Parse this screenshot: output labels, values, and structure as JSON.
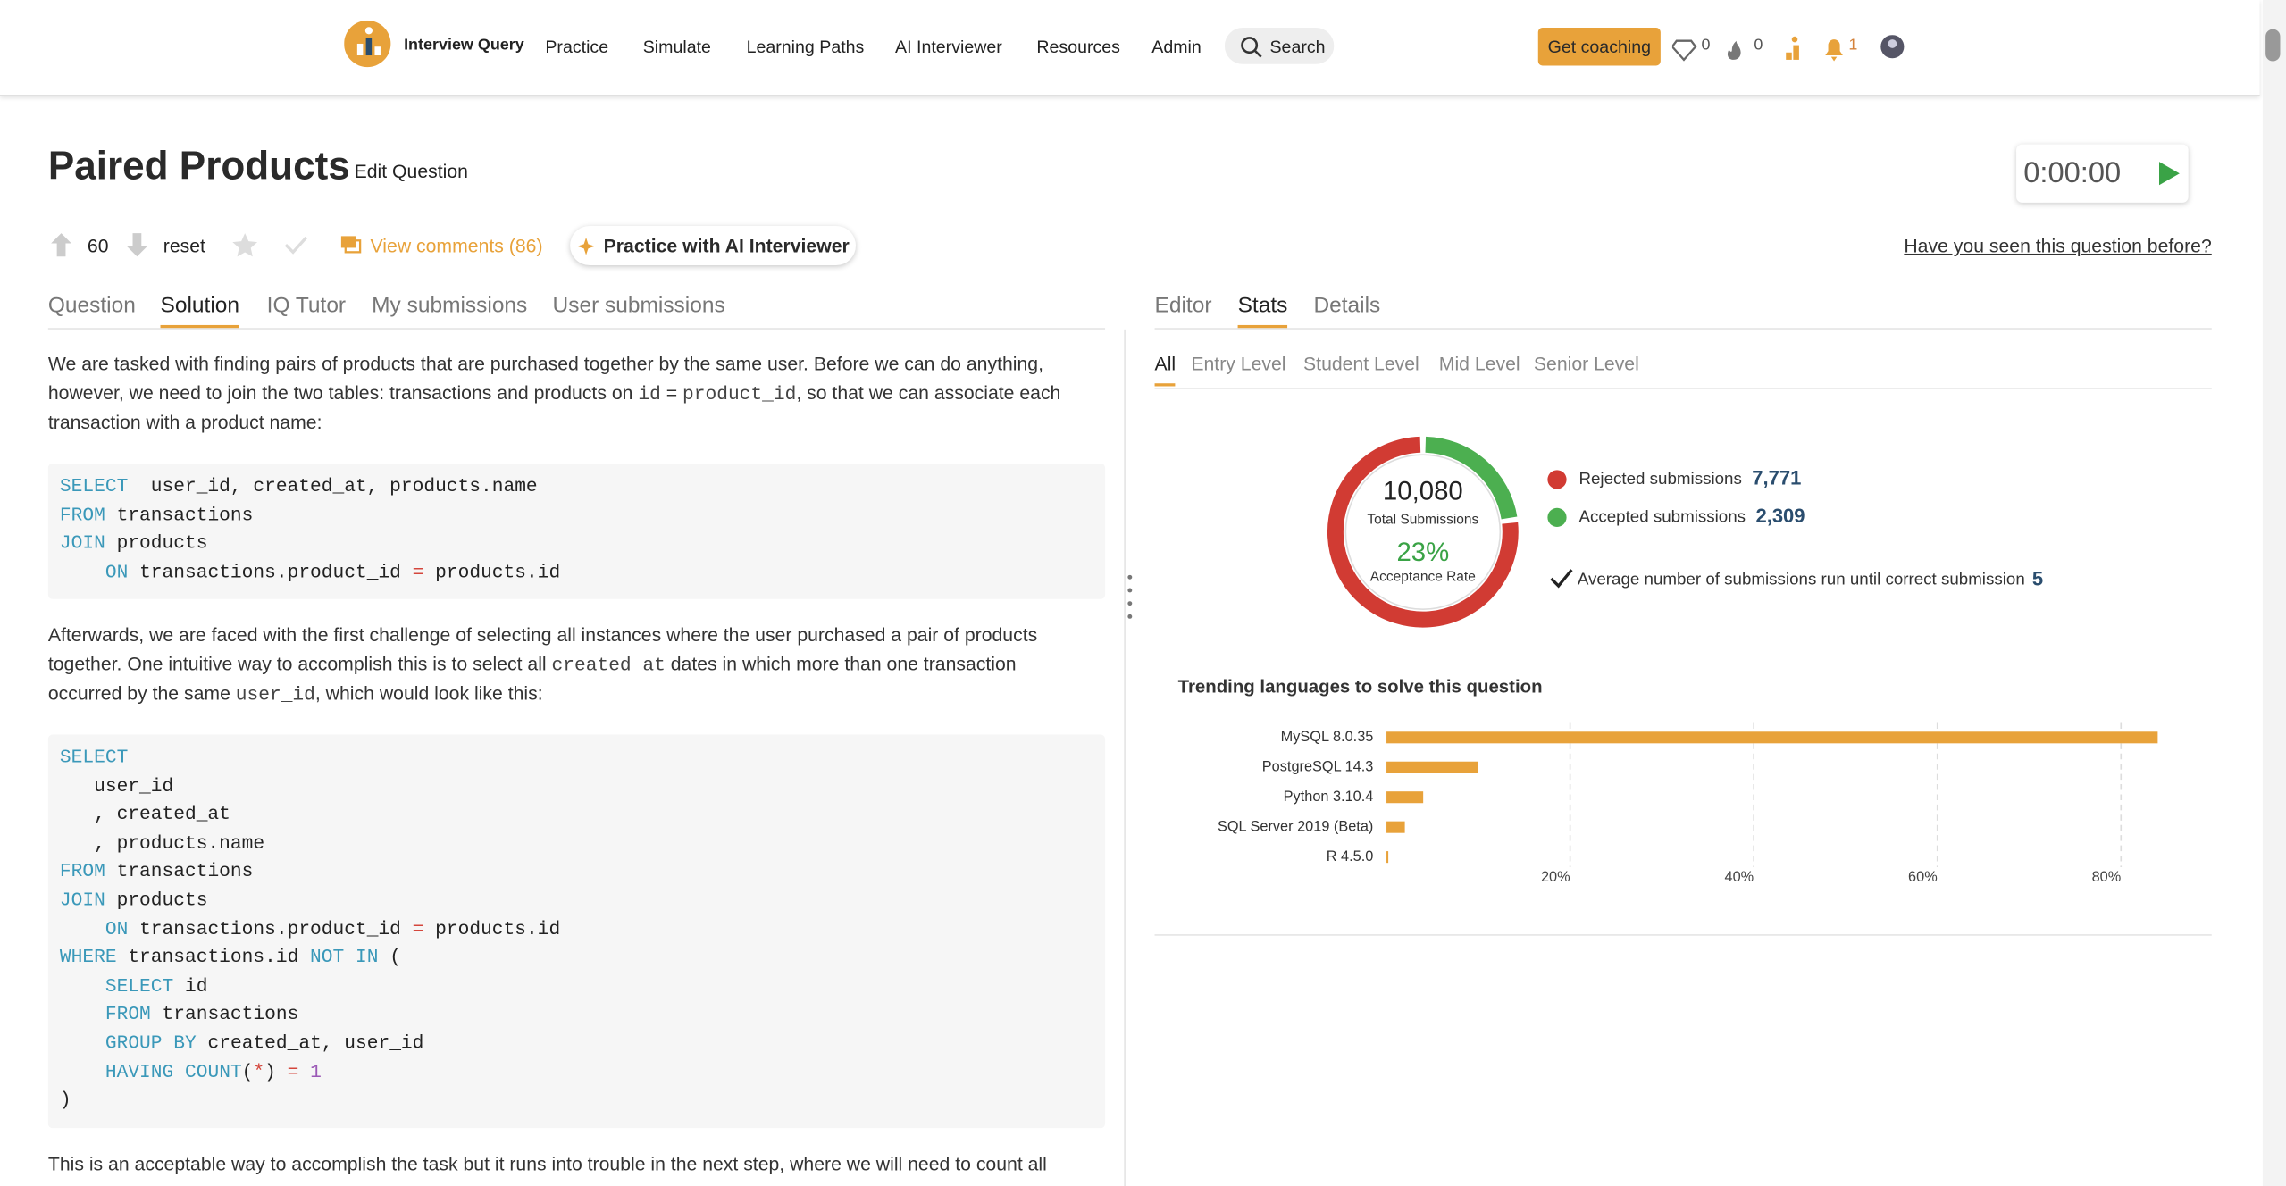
{
  "nav": {
    "brand": "Interview Query",
    "links": [
      "Practice",
      "Simulate",
      "Learning Paths",
      "AI Interviewer",
      "Resources",
      "Admin"
    ],
    "search": "Search",
    "coaching": "Get coaching",
    "gems": "0",
    "streak": "0",
    "notifications": "1"
  },
  "question": {
    "title": "Paired Products",
    "edit": "Edit Question",
    "votes": "60",
    "reset": "reset",
    "comments": "View comments (86)",
    "practice": "Practice with AI Interviewer",
    "timer": "0:00:00",
    "seen": "Have you seen this question before?"
  },
  "left_tabs": [
    "Question",
    "Solution",
    "IQ Tutor",
    "My submissions",
    "User submissions"
  ],
  "solution": {
    "paragraphs": [
      [
        "We are tasked with finding pairs of products that are purchased together by the same user. Before we can do anything, however, we need to join the two tables: transactions and products on ",
        "id",
        " = ",
        "product_id",
        ", so that we can associate each transaction with a product name:"
      ],
      [
        "Afterwards, we are faced with the first challenge of selecting all instances where the user purchased a pair of products together. One intuitive way to accomplish this is to select all ",
        "created_at",
        " dates in which more than one transaction occurred by the same ",
        "user_id",
        ", which would look like this:"
      ],
      [
        "This is an acceptable way to accomplish the task but it runs into trouble in the next step, where we will need to count all"
      ]
    ],
    "code_blocks": [
      [
        "SELECT  user_id, created_at, products.name",
        "FROM transactions",
        "JOIN products",
        "    ON transactions.product_id = products.id"
      ],
      [
        "SELECT",
        "   user_id",
        "   , created_at",
        "   , products.name",
        "FROM transactions",
        "JOIN products",
        "    ON transactions.product_id = products.id",
        "WHERE transactions.id NOT IN (",
        "    SELECT id",
        "    FROM transactions",
        "    GROUP BY created_at, user_id",
        "    HAVING COUNT(*) = 1",
        ")"
      ]
    ]
  },
  "right_tabs": [
    "Editor",
    "Stats",
    "Details"
  ],
  "level_tabs": [
    "All",
    "Entry Level",
    "Student Level",
    "Mid Level",
    "Senior Level"
  ],
  "chart_data": [
    {
      "type": "donut",
      "categories": [
        "Rejected submissions",
        "Accepted submissions"
      ],
      "values": [
        7771,
        2309
      ],
      "value_labels": [
        "7,771",
        "2,309"
      ],
      "colors": [
        "#d13b33",
        "#4caf50"
      ],
      "total": "10,080",
      "total_label": "Total Submissions",
      "rate": "23%",
      "rate_label": "Acceptance Rate"
    },
    {
      "type": "bar",
      "title": "Trending languages to solve this question",
      "categories": [
        "MySQL 8.0.35",
        "PostgreSQL 14.3",
        "Python 3.10.4",
        "SQL Server 2019 (Beta)",
        "R 4.5.0"
      ],
      "values": [
        84,
        10,
        4,
        2,
        0.2
      ],
      "color": "#e8a23a",
      "xlim": [
        0,
        84
      ],
      "xticks": [
        {
          "value": 20,
          "label": "20%"
        },
        {
          "value": 40,
          "label": "40%"
        },
        {
          "value": 60,
          "label": "60%"
        },
        {
          "value": 80,
          "label": "80%"
        }
      ],
      "grid": true
    }
  ],
  "average": {
    "label": "Average number of submissions run until correct submission",
    "value": "5"
  }
}
